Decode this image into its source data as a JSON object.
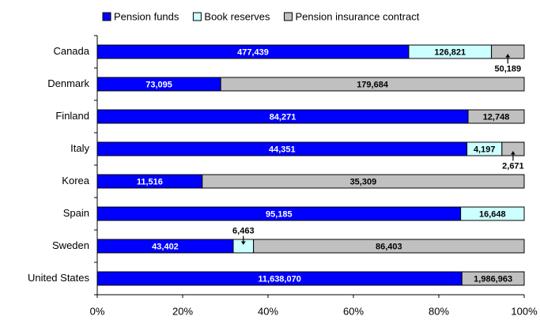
{
  "chart_data": {
    "type": "bar",
    "orientation": "horizontal",
    "stacked": "percent",
    "categories": [
      "Canada",
      "Denmark",
      "Finland",
      "Italy",
      "Korea",
      "Spain",
      "Sweden",
      "United States"
    ],
    "series": [
      {
        "name": "Pension funds",
        "color": "#0000ff",
        "values": [
          477439,
          73095,
          84271,
          44351,
          11516,
          95185,
          43402,
          11638070
        ],
        "value_labels": [
          "477,439",
          "73,095",
          "84,271",
          "44,351",
          "11,516",
          "95,185",
          "43,402",
          "11,638,070"
        ]
      },
      {
        "name": "Book reserves",
        "color": "#ccffff",
        "values": [
          126821,
          null,
          null,
          4197,
          null,
          16648,
          6463,
          null
        ],
        "value_labels": [
          "126,821",
          null,
          null,
          "4,197",
          null,
          "16,648",
          "6,463",
          null
        ]
      },
      {
        "name": "Pension insurance contract",
        "color": "#c0c0c0",
        "values": [
          50189,
          179684,
          12748,
          2671,
          35309,
          null,
          86403,
          1986963
        ],
        "value_labels": [
          "50,189",
          "179,684",
          "12,748",
          "2,671",
          "35,309",
          null,
          "86,403",
          "1,986,963"
        ]
      }
    ],
    "xlim": [
      0,
      100
    ],
    "xticks": [
      {
        "value": 0,
        "label": "0%"
      },
      {
        "value": 20,
        "label": "20%"
      },
      {
        "value": 40,
        "label": "40%"
      },
      {
        "value": 60,
        "label": "60%"
      },
      {
        "value": 80,
        "label": "80%"
      },
      {
        "value": 100,
        "label": "100%"
      }
    ],
    "legend": "top"
  }
}
